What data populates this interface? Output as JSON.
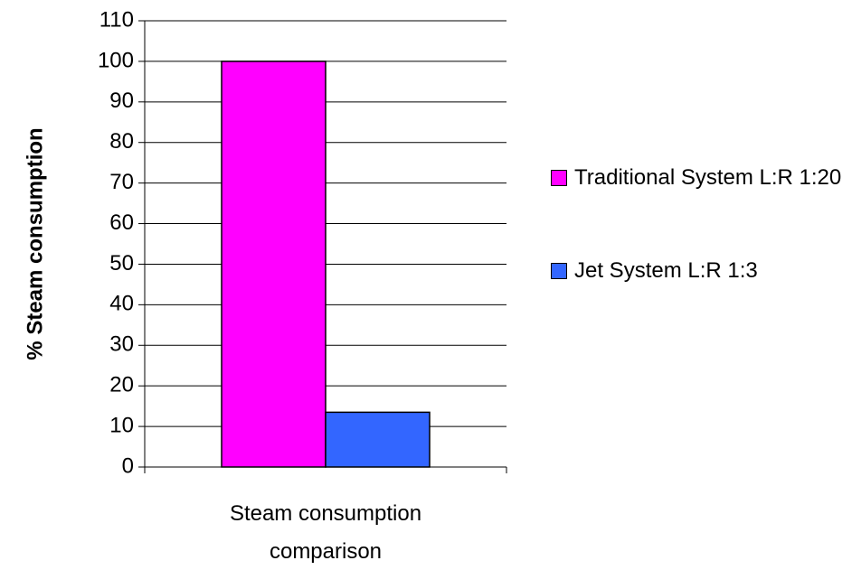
{
  "chart_data": {
    "type": "bar",
    "categories": [
      "Steam consumption comparison"
    ],
    "series": [
      {
        "name": "Traditional System L:R 1:20",
        "color": "#ff00ff",
        "values": [
          100
        ]
      },
      {
        "name": "Jet System L:R 1:3",
        "color": "#3366ff",
        "values": [
          13.5
        ]
      }
    ],
    "y_label": "% Steam consumption",
    "ylim": [
      0,
      110
    ],
    "yticks": [
      0,
      10,
      20,
      30,
      40,
      50,
      60,
      70,
      80,
      90,
      100,
      110
    ],
    "grid": true,
    "legend": "right"
  }
}
